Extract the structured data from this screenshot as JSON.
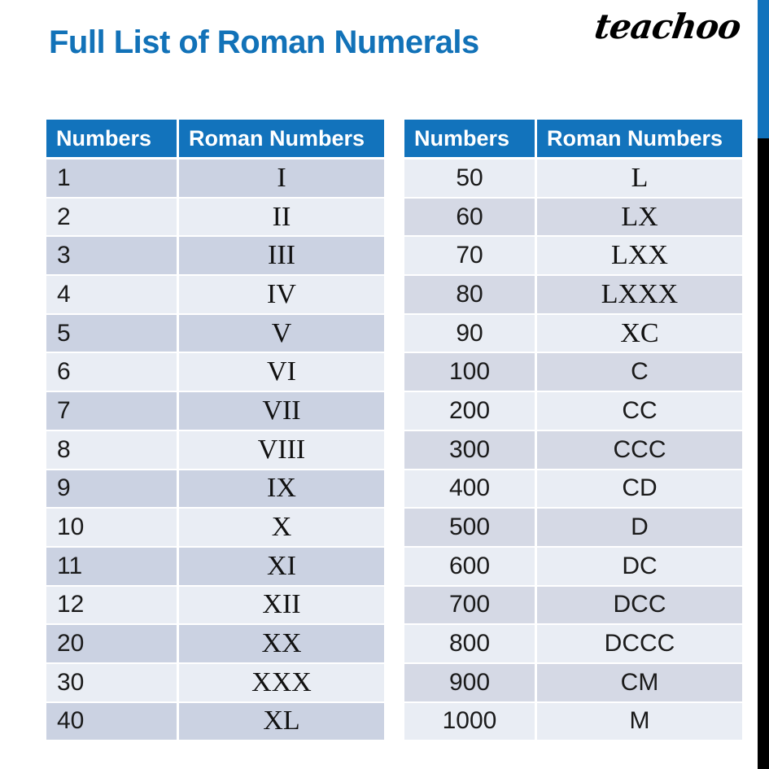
{
  "header": {
    "title": "Full List of Roman Numerals",
    "logo": "teachoo"
  },
  "colors": {
    "title_blue": "#1272b8",
    "header_blue": "#1273bc",
    "row_light": "#e9edf4",
    "row_dark_left": "#cbd2e2",
    "row_dark_right": "#d5d9e5",
    "stripe_blue": "#1273bc",
    "stripe_black": "#000000",
    "text_dark": "#1a1a1a"
  },
  "tables": [
    {
      "headers": [
        "Numbers",
        "Roman Numbers"
      ],
      "rows": [
        [
          "1",
          "I"
        ],
        [
          "2",
          "II"
        ],
        [
          "3",
          "III"
        ],
        [
          "4",
          "IV"
        ],
        [
          "5",
          "V"
        ],
        [
          "6",
          "VI"
        ],
        [
          "7",
          "VII"
        ],
        [
          "8",
          "VIII"
        ],
        [
          "9",
          "IX"
        ],
        [
          "10",
          "X"
        ],
        [
          "11",
          "XI"
        ],
        [
          "12",
          "XII"
        ],
        [
          "20",
          "XX"
        ],
        [
          "30",
          "XXX"
        ],
        [
          "40",
          "XL"
        ]
      ]
    },
    {
      "headers": [
        "Numbers",
        "Roman Numbers"
      ],
      "rows": [
        [
          "50",
          "L"
        ],
        [
          "60",
          "LX"
        ],
        [
          "70",
          "LXX"
        ],
        [
          "80",
          "LXXX"
        ],
        [
          "90",
          "XC"
        ],
        [
          "100",
          "C"
        ],
        [
          "200",
          "CC"
        ],
        [
          "300",
          "CCC"
        ],
        [
          "400",
          "CD"
        ],
        [
          "500",
          "D"
        ],
        [
          "600",
          "DC"
        ],
        [
          "700",
          "DCC"
        ],
        [
          "800",
          "DCCC"
        ],
        [
          "900",
          "CM"
        ],
        [
          "1000",
          "M"
        ]
      ]
    }
  ]
}
